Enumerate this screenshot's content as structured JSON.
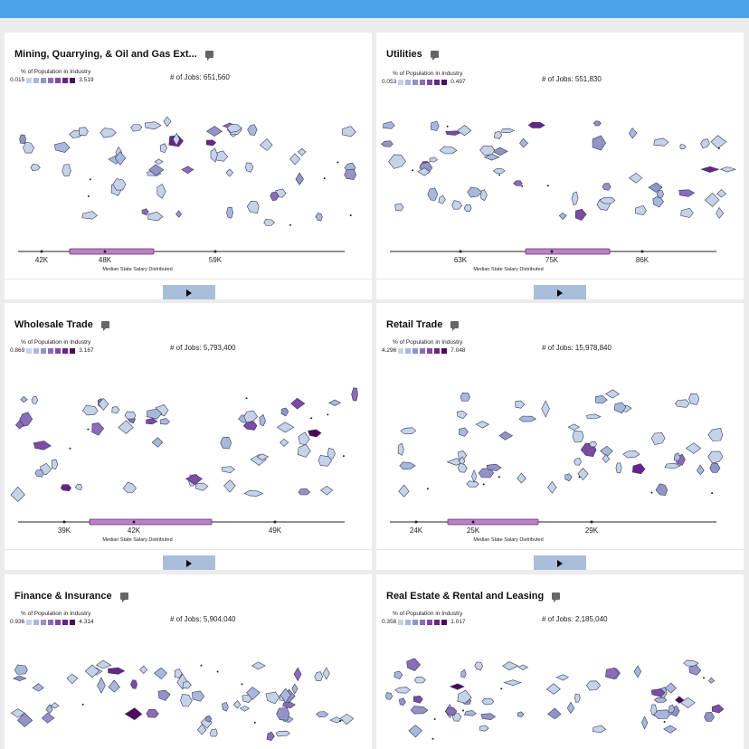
{
  "colors": {
    "topbar": "#4aa3e8",
    "scale": [
      "#c5d3e8",
      "#a8b8dc",
      "#9393c8",
      "#8a6cb8",
      "#7d4aa4",
      "#6a2488",
      "#4d0a5c"
    ],
    "highlight_bar": "#b784c4",
    "play_button": "#a9bedb"
  },
  "common": {
    "legend_title": "% of Population in Industry",
    "axis_label": "Median State Salary Distributed",
    "play_icon": "play-icon",
    "comment_icon": "comment-icon"
  },
  "cards": [
    {
      "title": "Mining, Quarrying, & Oil and Gas Ext...",
      "legend_min": "0.015",
      "legend_max": "3.519",
      "jobs_label": "# of Jobs: 651,560",
      "ticks": [
        "42K",
        "48K",
        "59K"
      ]
    },
    {
      "title": "Utilities",
      "legend_min": "0.053",
      "legend_max": "0.497",
      "jobs_label": "# of Jobs: 551,830",
      "ticks": [
        "63K",
        "75K",
        "86K"
      ]
    },
    {
      "title": "Wholesale Trade",
      "legend_min": "0.869",
      "legend_max": "3.167",
      "jobs_label": "# of Jobs: 5,793,400",
      "ticks": [
        "39K",
        "42K",
        "49K"
      ]
    },
    {
      "title": "Retail Trade",
      "legend_min": "4.296",
      "legend_max": "7.048",
      "jobs_label": "# of Jobs: 15,978,840",
      "ticks": [
        "24K",
        "25K",
        "29K"
      ]
    },
    {
      "title": "Finance & Insurance",
      "legend_min": "0.936",
      "legend_max": "4.314",
      "jobs_label": "# of Jobs: 5,904,040",
      "ticks": []
    },
    {
      "title": "Real Estate & Rental and Leasing",
      "legend_min": "0.358",
      "legend_max": "1.017",
      "jobs_label": "# of Jobs: 2,185,040",
      "ticks": []
    }
  ]
}
